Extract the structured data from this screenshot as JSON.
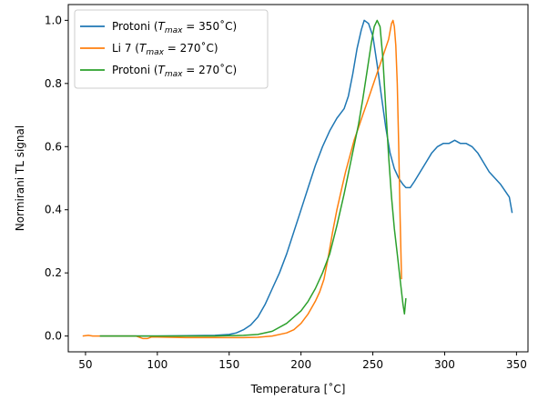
{
  "chart_data": {
    "type": "line",
    "xlabel": "Temperatura [˚C]",
    "ylabel": "Normirani TL signal",
    "xlim": [
      38,
      358
    ],
    "ylim": [
      -0.05,
      1.05
    ],
    "xticks": [
      50,
      100,
      150,
      200,
      250,
      300,
      350
    ],
    "yticks": [
      0.0,
      0.2,
      0.4,
      0.6,
      0.8,
      1.0
    ],
    "yticklabels": [
      "0.0",
      "0.2",
      "0.4",
      "0.6",
      "0.8",
      "1.0"
    ],
    "grid": false,
    "legend_position": "top-left",
    "series": [
      {
        "name": "Protoni (Tmax = 350˚C)",
        "legend_label": {
          "prefix": "Protoni (",
          "T": "T",
          "sub": "max",
          "suffix": " = 350˚C)"
        },
        "color": "#1f77b4",
        "points": [
          [
            60,
            0.0
          ],
          [
            100,
            0.0
          ],
          [
            140,
            0.002
          ],
          [
            150,
            0.005
          ],
          [
            155,
            0.01
          ],
          [
            160,
            0.02
          ],
          [
            165,
            0.035
          ],
          [
            170,
            0.06
          ],
          [
            175,
            0.1
          ],
          [
            180,
            0.15
          ],
          [
            185,
            0.2
          ],
          [
            190,
            0.26
          ],
          [
            195,
            0.33
          ],
          [
            200,
            0.4
          ],
          [
            205,
            0.47
          ],
          [
            210,
            0.54
          ],
          [
            215,
            0.6
          ],
          [
            220,
            0.65
          ],
          [
            225,
            0.69
          ],
          [
            230,
            0.72
          ],
          [
            233,
            0.76
          ],
          [
            236,
            0.83
          ],
          [
            239,
            0.91
          ],
          [
            242,
            0.97
          ],
          [
            244,
            1.0
          ],
          [
            247,
            0.99
          ],
          [
            250,
            0.95
          ],
          [
            253,
            0.86
          ],
          [
            256,
            0.76
          ],
          [
            259,
            0.66
          ],
          [
            262,
            0.58
          ],
          [
            265,
            0.53
          ],
          [
            268,
            0.5
          ],
          [
            271,
            0.48
          ],
          [
            273,
            0.47
          ],
          [
            276,
            0.47
          ],
          [
            279,
            0.49
          ],
          [
            283,
            0.52
          ],
          [
            287,
            0.55
          ],
          [
            291,
            0.58
          ],
          [
            295,
            0.6
          ],
          [
            299,
            0.61
          ],
          [
            303,
            0.61
          ],
          [
            307,
            0.62
          ],
          [
            311,
            0.61
          ],
          [
            315,
            0.61
          ],
          [
            319,
            0.6
          ],
          [
            323,
            0.58
          ],
          [
            327,
            0.55
          ],
          [
            331,
            0.52
          ],
          [
            335,
            0.5
          ],
          [
            339,
            0.48
          ],
          [
            342,
            0.46
          ],
          [
            345,
            0.44
          ],
          [
            347,
            0.39
          ]
        ]
      },
      {
        "name": "Li 7 (Tmax = 270˚C)",
        "legend_label": {
          "prefix": "Li 7 (",
          "T": "T",
          "sub": "max",
          "suffix": " = 270˚C)"
        },
        "color": "#ff7f0e",
        "points": [
          [
            48,
            0.0
          ],
          [
            52,
            0.002
          ],
          [
            55,
            0.0
          ],
          [
            60,
            0.0
          ],
          [
            70,
            0.0
          ],
          [
            85,
            0.0
          ],
          [
            90,
            -0.008
          ],
          [
            93,
            -0.008
          ],
          [
            96,
            -0.003
          ],
          [
            100,
            -0.003
          ],
          [
            120,
            -0.005
          ],
          [
            140,
            -0.005
          ],
          [
            160,
            -0.005
          ],
          [
            170,
            -0.004
          ],
          [
            180,
            0.0
          ],
          [
            190,
            0.01
          ],
          [
            195,
            0.02
          ],
          [
            200,
            0.04
          ],
          [
            205,
            0.07
          ],
          [
            210,
            0.11
          ],
          [
            213,
            0.14
          ],
          [
            216,
            0.18
          ],
          [
            219,
            0.25
          ],
          [
            222,
            0.33
          ],
          [
            225,
            0.4
          ],
          [
            228,
            0.46
          ],
          [
            231,
            0.52
          ],
          [
            234,
            0.57
          ],
          [
            237,
            0.62
          ],
          [
            240,
            0.66
          ],
          [
            243,
            0.7
          ],
          [
            246,
            0.74
          ],
          [
            249,
            0.78
          ],
          [
            252,
            0.82
          ],
          [
            255,
            0.86
          ],
          [
            258,
            0.9
          ],
          [
            261,
            0.94
          ],
          [
            263,
            0.99
          ],
          [
            264,
            1.0
          ],
          [
            265,
            0.98
          ],
          [
            266,
            0.92
          ],
          [
            267,
            0.8
          ],
          [
            268,
            0.6
          ],
          [
            269,
            0.38
          ],
          [
            270,
            0.18
          ]
        ]
      },
      {
        "name": "Protoni (Tmax = 270˚C)",
        "legend_label": {
          "prefix": "Protoni (",
          "T": "T",
          "sub": "max",
          "suffix": " = 270˚C)"
        },
        "color": "#2ca02c",
        "points": [
          [
            60,
            0.0
          ],
          [
            100,
            0.0
          ],
          [
            140,
            0.0
          ],
          [
            160,
            0.002
          ],
          [
            170,
            0.005
          ],
          [
            180,
            0.015
          ],
          [
            190,
            0.04
          ],
          [
            200,
            0.08
          ],
          [
            205,
            0.11
          ],
          [
            210,
            0.15
          ],
          [
            215,
            0.2
          ],
          [
            220,
            0.26
          ],
          [
            225,
            0.35
          ],
          [
            230,
            0.45
          ],
          [
            235,
            0.56
          ],
          [
            240,
            0.67
          ],
          [
            243,
            0.75
          ],
          [
            246,
            0.84
          ],
          [
            249,
            0.93
          ],
          [
            251,
            0.98
          ],
          [
            253,
            1.0
          ],
          [
            255,
            0.98
          ],
          [
            257,
            0.88
          ],
          [
            259,
            0.72
          ],
          [
            261,
            0.57
          ],
          [
            263,
            0.44
          ],
          [
            265,
            0.34
          ],
          [
            267,
            0.26
          ],
          [
            269,
            0.18
          ],
          [
            271,
            0.1
          ],
          [
            272,
            0.07
          ],
          [
            273,
            0.12
          ]
        ]
      }
    ]
  }
}
